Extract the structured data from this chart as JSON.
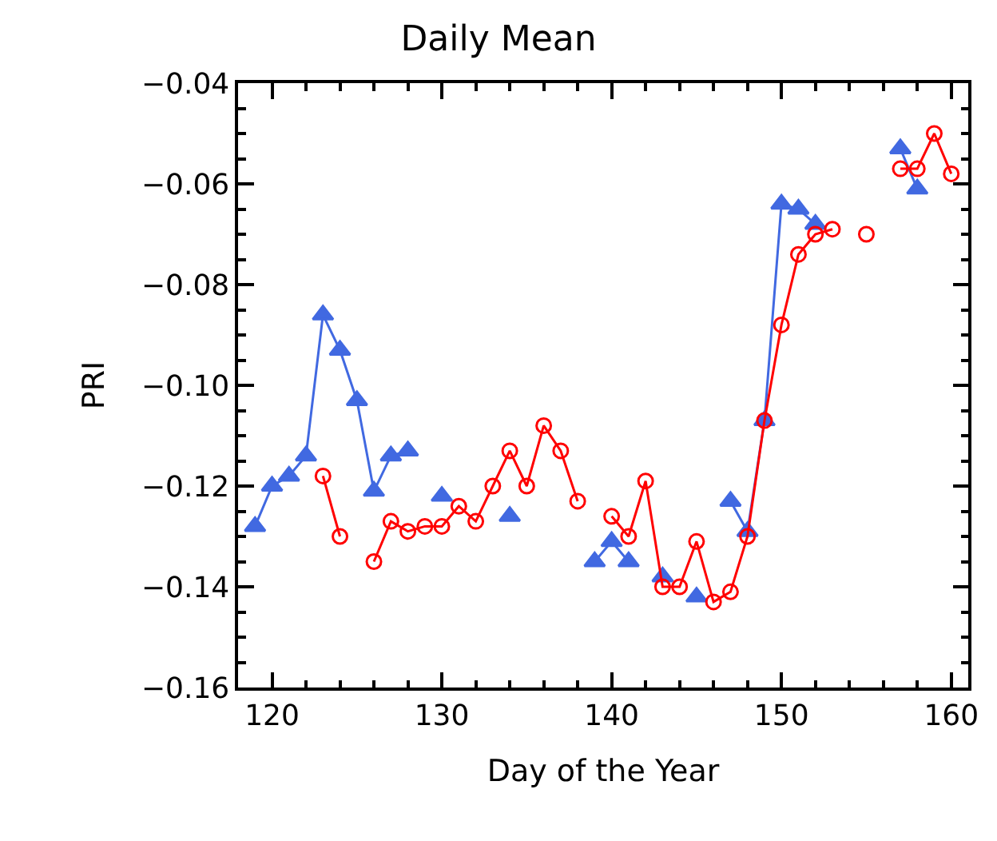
{
  "chart_data": {
    "type": "line",
    "title": "Daily Mean",
    "xlabel": "Day of the Year",
    "ylabel": "PRI",
    "x": [
      119,
      120,
      121,
      122,
      123,
      124,
      125,
      126,
      127,
      128,
      129,
      130,
      131,
      132,
      133,
      134,
      135,
      136,
      137,
      138,
      139,
      140,
      141,
      142,
      143,
      144,
      145,
      146,
      147,
      148,
      149,
      150,
      151,
      152,
      153,
      154,
      155,
      156,
      157,
      158,
      159,
      160
    ],
    "series": [
      {
        "color": "#4169e1",
        "marker": "triangle",
        "values": [
          -0.128,
          -0.12,
          -0.118,
          -0.114,
          -0.086,
          -0.093,
          -0.103,
          -0.121,
          -0.114,
          -0.113,
          null,
          -0.122,
          null,
          null,
          null,
          -0.126,
          null,
          null,
          null,
          null,
          -0.135,
          -0.131,
          -0.135,
          null,
          -0.138,
          null,
          -0.142,
          null,
          -0.123,
          -0.129,
          -0.107,
          -0.064,
          -0.065,
          -0.068,
          null,
          null,
          null,
          null,
          -0.053,
          -0.061,
          null,
          null
        ]
      },
      {
        "color": "#ff0000",
        "marker": "circle",
        "values": [
          null,
          null,
          null,
          null,
          -0.118,
          -0.13,
          null,
          -0.135,
          -0.127,
          -0.129,
          -0.128,
          -0.128,
          -0.124,
          -0.127,
          -0.12,
          -0.113,
          -0.12,
          -0.108,
          -0.113,
          -0.123,
          null,
          -0.126,
          -0.13,
          -0.119,
          -0.14,
          -0.14,
          -0.131,
          -0.143,
          -0.141,
          -0.13,
          -0.107,
          -0.088,
          -0.074,
          -0.07,
          -0.069,
          null,
          -0.07,
          null,
          -0.057,
          -0.057,
          -0.05,
          -0.058
        ]
      }
    ],
    "xlim": [
      118,
      161
    ],
    "xticks": [
      120,
      {
        "value": 122,
        "label": null
      },
      {
        "value": 124,
        "label": null
      },
      {
        "value": 126,
        "label": null
      },
      {
        "value": 128,
        "label": null
      },
      130,
      {
        "value": 132,
        "label": null
      },
      {
        "value": 134,
        "label": null
      },
      {
        "value": 136,
        "label": null
      },
      {
        "value": 138,
        "label": null
      },
      140,
      {
        "value": 142,
        "label": null
      },
      {
        "value": 144,
        "label": null
      },
      {
        "value": 146,
        "label": null
      },
      {
        "value": 148,
        "label": null
      },
      150,
      {
        "value": 152,
        "label": null
      },
      {
        "value": 154,
        "label": null
      },
      {
        "value": 156,
        "label": null
      },
      {
        "value": 158,
        "label": null
      },
      160
    ],
    "ylim": [
      -0.16,
      -0.04
    ],
    "yticks": [
      {
        "value": -0.16,
        "label": "−0.16"
      },
      {
        "value": -0.155,
        "label": null
      },
      {
        "value": -0.15,
        "label": null
      },
      {
        "value": -0.145,
        "label": null
      },
      {
        "value": -0.14,
        "label": "−0.14"
      },
      {
        "value": -0.135,
        "label": null
      },
      {
        "value": -0.13,
        "label": null
      },
      {
        "value": -0.125,
        "label": null
      },
      {
        "value": -0.12,
        "label": "−0.12"
      },
      {
        "value": -0.115,
        "label": null
      },
      {
        "value": -0.11,
        "label": null
      },
      {
        "value": -0.105,
        "label": null
      },
      {
        "value": -0.1,
        "label": "−0.10"
      },
      {
        "value": -0.095,
        "label": null
      },
      {
        "value": -0.09,
        "label": null
      },
      {
        "value": -0.085,
        "label": null
      },
      {
        "value": -0.08,
        "label": "−0.08"
      },
      {
        "value": -0.075,
        "label": null
      },
      {
        "value": -0.07,
        "label": null
      },
      {
        "value": -0.065,
        "label": null
      },
      {
        "value": -0.06,
        "label": "−0.06"
      },
      {
        "value": -0.055,
        "label": null
      },
      {
        "value": -0.05,
        "label": null
      },
      {
        "value": -0.045,
        "label": null
      },
      {
        "value": -0.04,
        "label": "−0.04"
      }
    ],
    "tick_labels": true
  }
}
